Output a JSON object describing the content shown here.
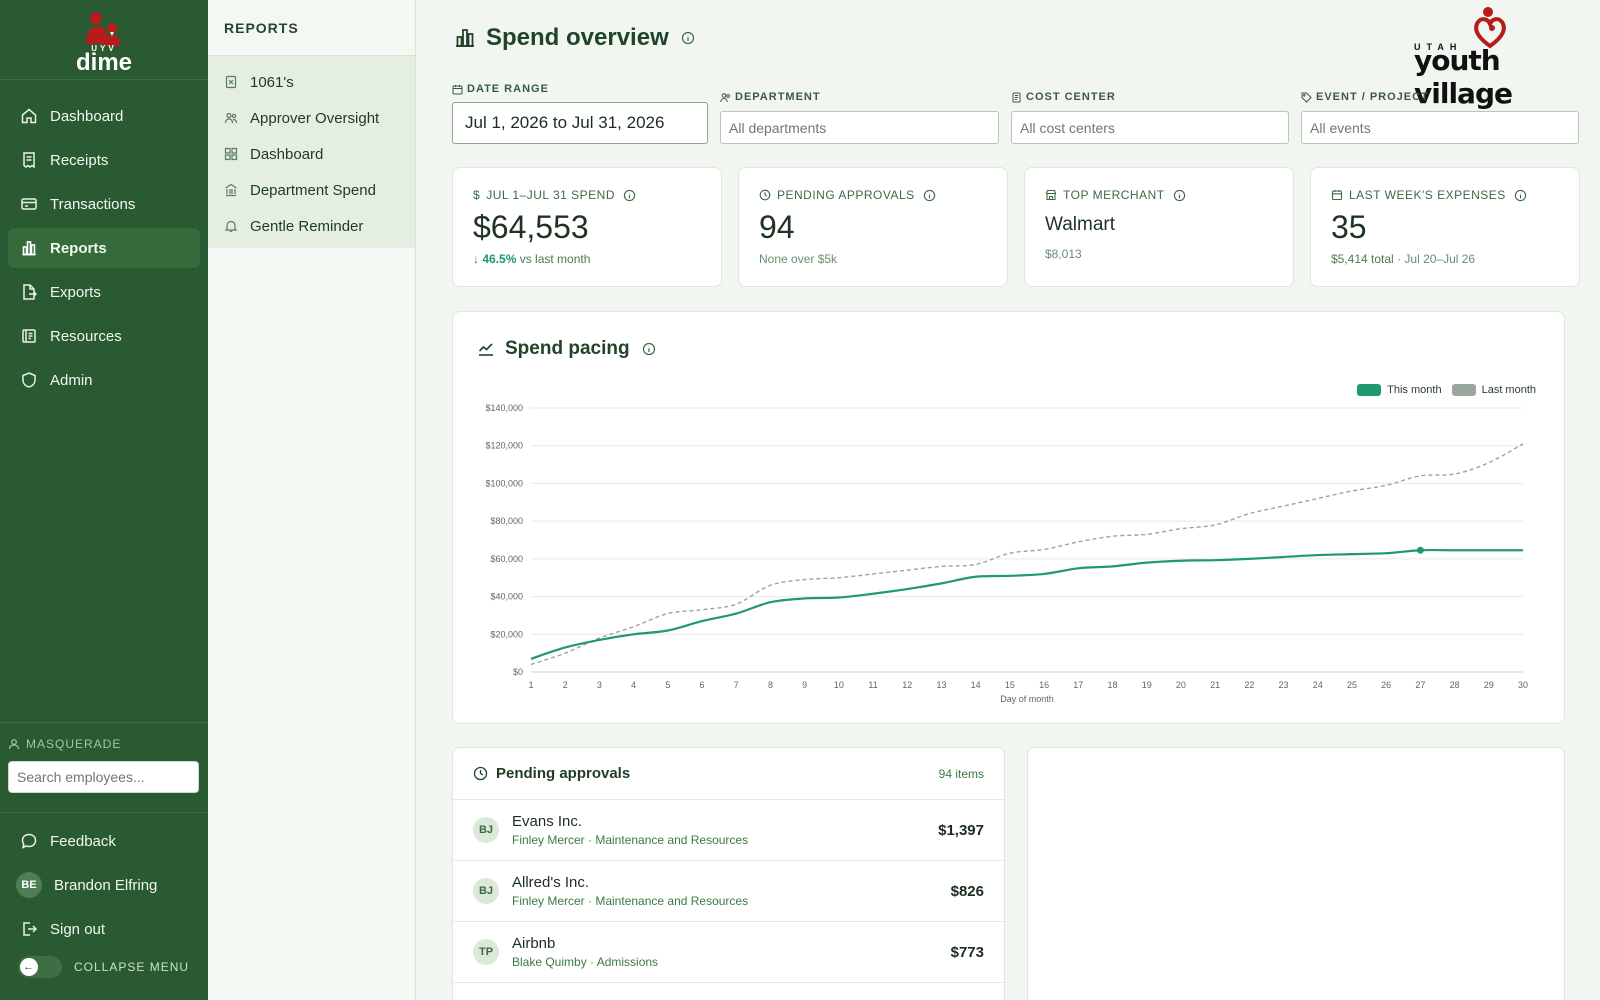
{
  "app": {
    "brand_small": "UYV",
    "brand_word": "dime"
  },
  "sidebar": {
    "items": [
      {
        "label": "Dashboard",
        "icon": "home-icon"
      },
      {
        "label": "Receipts",
        "icon": "receipt-icon"
      },
      {
        "label": "Transactions",
        "icon": "card-icon"
      },
      {
        "label": "Reports",
        "icon": "bar-chart-icon",
        "active": true
      },
      {
        "label": "Exports",
        "icon": "file-export-icon"
      },
      {
        "label": "Resources",
        "icon": "book-icon"
      },
      {
        "label": "Admin",
        "icon": "shield-icon"
      }
    ],
    "masquerade_label": "MASQUERADE",
    "masquerade_placeholder": "Search employees...",
    "feedback": "Feedback",
    "user_initials": "BE",
    "user_name": "Brandon Elfring",
    "sign_out": "Sign out",
    "collapse": "COLLAPSE MENU"
  },
  "reports_nav": {
    "title": "REPORTS",
    "items": [
      "1061's",
      "Approver Oversight",
      "Dashboard",
      "Department Spend",
      "Gentle Reminder"
    ]
  },
  "header": {
    "title": "Spend overview",
    "logo_small": "UTAH",
    "logo_word": "youth village"
  },
  "filters": {
    "date_label": "DATE RANGE",
    "date_value": "Jul 1, 2026 to Jul 31, 2026",
    "dept_label": "DEPARTMENT",
    "dept_placeholder": "All departments",
    "cost_label": "COST CENTER",
    "cost_placeholder": "All cost centers",
    "event_label": "EVENT / PROJECT",
    "event_placeholder": "All events"
  },
  "kpis": {
    "spend": {
      "label": "JUL 1–JUL 31 SPEND",
      "value": "$64,553",
      "pct": "46.5%",
      "sub": "vs last month"
    },
    "pending": {
      "label": "PENDING APPROVALS",
      "value": "94",
      "sub": "None over $5k"
    },
    "merchant": {
      "label": "TOP MERCHANT",
      "value": "Walmart",
      "sub": "$8,013"
    },
    "lastweek": {
      "label": "LAST WEEK'S EXPENSES",
      "value": "35",
      "sub_total": "$5,414 total",
      "sub_range": "· Jul 20–Jul 26"
    }
  },
  "chart": {
    "title": "Spend pacing",
    "legend_this": "This month",
    "legend_last": "Last month"
  },
  "chart_data": {
    "type": "line",
    "xlabel": "Day of month",
    "ylabel": "",
    "x": [
      1,
      2,
      3,
      4,
      5,
      6,
      7,
      8,
      9,
      10,
      11,
      12,
      13,
      14,
      15,
      16,
      17,
      18,
      19,
      20,
      21,
      22,
      23,
      24,
      25,
      26,
      27,
      28,
      29,
      30
    ],
    "ylim": [
      0,
      140000
    ],
    "y_ticks": [
      "$0",
      "$20,000",
      "$40,000",
      "$60,000",
      "$80,000",
      "$100,000",
      "$120,000",
      "$140,000"
    ],
    "grid": true,
    "legend": "top-right",
    "series": [
      {
        "name": "This month",
        "color": "#1f9a6e",
        "style": "solid",
        "values": [
          7000,
          13000,
          17000,
          20000,
          22000,
          27000,
          31000,
          37000,
          39000,
          39500,
          41500,
          44000,
          47000,
          50500,
          51000,
          52000,
          55000,
          56000,
          58000,
          59000,
          59300,
          60000,
          61000,
          62000,
          62500,
          63000,
          64553,
          64553,
          64553,
          64553
        ]
      },
      {
        "name": "Last month",
        "color": "#9aa59b",
        "style": "dashed",
        "values": [
          4000,
          10000,
          18000,
          24000,
          31000,
          33000,
          36000,
          46000,
          49000,
          50000,
          52000,
          54000,
          56000,
          57000,
          63000,
          65000,
          69000,
          72000,
          73000,
          76000,
          78000,
          84000,
          88000,
          92000,
          96000,
          99000,
          104000,
          105000,
          111000,
          121000
        ]
      }
    ]
  },
  "pending": {
    "title": "Pending approvals",
    "count": "94 items",
    "rows": [
      {
        "initials": "BJ",
        "merchant": "Evans Inc.",
        "meta": "Finley Mercer · Maintenance and Resources",
        "amount": "$1,397"
      },
      {
        "initials": "BJ",
        "merchant": "Allred's Inc.",
        "meta": "Finley Mercer · Maintenance and Resources",
        "amount": "$826"
      },
      {
        "initials": "TP",
        "merchant": "Airbnb",
        "meta": "Blake Quimby · Admissions",
        "amount": "$773"
      }
    ]
  },
  "colors": {
    "sidebar": "#2a5a31",
    "accent": "#1f9a6e",
    "brand_red": "#b71c1c"
  }
}
